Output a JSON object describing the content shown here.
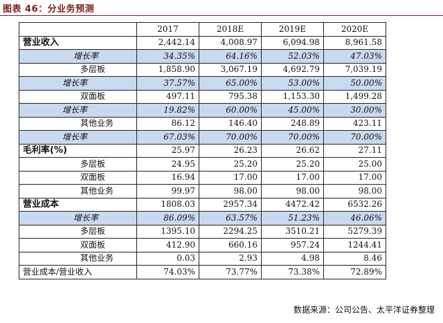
{
  "header": {
    "title": "图表 46：分业务预测"
  },
  "table": {
    "columns": [
      "",
      "2017",
      "2018E",
      "2019E",
      "2020E"
    ],
    "rows": [
      {
        "kind": "major",
        "label": "营业收入",
        "values": [
          "2,442.14",
          "4,008.97",
          "6,094.98",
          "8,961.58"
        ]
      },
      {
        "kind": "growth",
        "label": "增长率",
        "values": [
          "34.35%",
          "64.16%",
          "52.03%",
          "47.03%"
        ]
      },
      {
        "kind": "sub",
        "label": "多层板",
        "values": [
          "1,858.90",
          "3,067.19",
          "4,692.79",
          "7,039.19"
        ]
      },
      {
        "kind": "growth2",
        "label": "增长率",
        "values": [
          "37.57%",
          "65.00%",
          "53.00%",
          "50.00%"
        ]
      },
      {
        "kind": "sub",
        "label": "双面板",
        "values": [
          "497.11",
          "795.38",
          "1,153.30",
          "1,499.28"
        ]
      },
      {
        "kind": "growth2",
        "label": "增长率",
        "values": [
          "19.82%",
          "60.00%",
          "45.00%",
          "30.00%"
        ]
      },
      {
        "kind": "sub",
        "label": "其他业务",
        "values": [
          "86.12",
          "146.40",
          "248.89",
          "423.11"
        ]
      },
      {
        "kind": "growth2",
        "label": "增长率",
        "values": [
          "67.03%",
          "70.00%",
          "70.00%",
          "70.00%"
        ]
      },
      {
        "kind": "major",
        "label": "毛利率(%)",
        "values": [
          "25.97",
          "26.23",
          "26.62",
          "27.11"
        ]
      },
      {
        "kind": "sub",
        "label": "多层板",
        "values": [
          "24.95",
          "25.20",
          "25.20",
          "25.00"
        ]
      },
      {
        "kind": "sub",
        "label": "双面板",
        "values": [
          "16.94",
          "17.00",
          "17.00",
          "17.00"
        ]
      },
      {
        "kind": "sub",
        "label": "其他业务",
        "values": [
          "99.97",
          "98.00",
          "98.00",
          "98.00"
        ]
      },
      {
        "kind": "major",
        "label": "营业成本",
        "values": [
          "1808.03",
          "2957.34",
          "4472.42",
          "6532.26"
        ]
      },
      {
        "kind": "growth",
        "label": "增长率",
        "values": [
          "86.09%",
          "63.57%",
          "51.23%",
          "46.06%"
        ]
      },
      {
        "kind": "sub",
        "label": "多层板",
        "values": [
          "1395.10",
          "2294.25",
          "3510.21",
          "5279.39"
        ]
      },
      {
        "kind": "sub",
        "label": "双面板",
        "values": [
          "412.90",
          "660.16",
          "957.24",
          "1244.41"
        ]
      },
      {
        "kind": "sub",
        "label": "其他业务",
        "values": [
          "0.03",
          "2.93",
          "4.98",
          "8.46"
        ]
      },
      {
        "kind": "plain",
        "label": "营业成本/营业收入",
        "values": [
          "74.03%",
          "73.77%",
          "73.38%",
          "72.89%"
        ]
      }
    ]
  },
  "source": "数据来源：公司公告、太平洋证券整理",
  "colors": {
    "growth_bg": "#c9d9ef",
    "title": "#7a1f1f"
  }
}
